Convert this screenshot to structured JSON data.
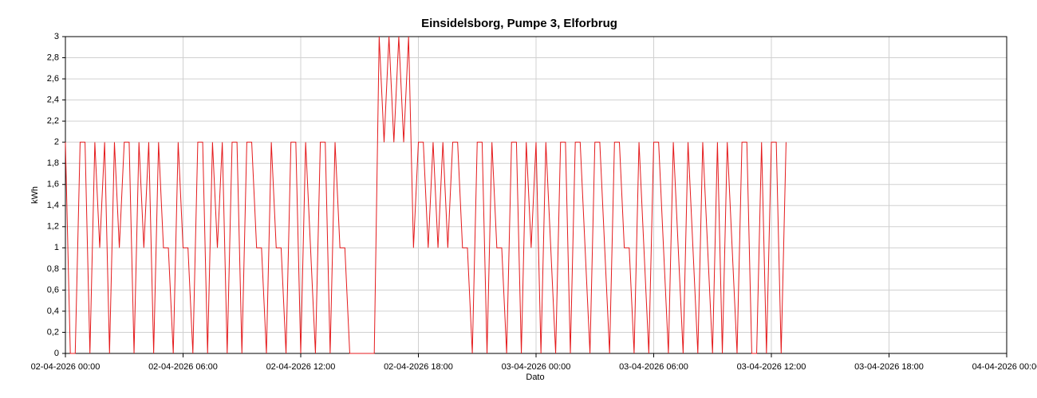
{
  "chart_data": {
    "type": "line",
    "title": "Einsidelsborg, Pumpe 3, Elforbrug",
    "x_label": "Dato",
    "y_label": "kWh",
    "grid": true,
    "xlim": [
      "02-04-2026 00:00",
      "04-04-2026 00:00"
    ],
    "xticks": [
      "02-04-2026 00:00",
      "02-04-2026 06:00",
      "02-04-2026 12:00",
      "02-04-2026 18:00",
      "03-04-2026 00:00",
      "03-04-2026 06:00",
      "03-04-2026 12:00",
      "03-04-2026 18:00",
      "04-04-2026 00:00"
    ],
    "ylim": [
      0,
      3
    ],
    "yticks": [
      0,
      {
        "value": 0.2,
        "label": "0,2"
      },
      {
        "value": 0.4,
        "label": "0,4"
      },
      {
        "value": 0.6,
        "label": "0,6"
      },
      {
        "value": 0.8,
        "label": "0,8"
      },
      1,
      {
        "value": 1.2,
        "label": "1,2"
      },
      {
        "value": 1.4,
        "label": "1,4"
      },
      {
        "value": 1.6,
        "label": "1,6"
      },
      {
        "value": 1.8,
        "label": "1,8"
      },
      2,
      {
        "value": 2.2,
        "label": "2,2"
      },
      {
        "value": 2.4,
        "label": "2,4"
      },
      {
        "value": 2.6,
        "label": "2,6"
      },
      {
        "value": 2.8,
        "label": "2,8"
      },
      3
    ],
    "x": [
      "02-04-2026 00:00",
      "02-04-2026 00:15",
      "02-04-2026 00:30",
      "02-04-2026 00:45",
      "02-04-2026 01:00",
      "02-04-2026 01:15",
      "02-04-2026 01:30",
      "02-04-2026 01:45",
      "02-04-2026 02:00",
      "02-04-2026 02:15",
      "02-04-2026 02:30",
      "02-04-2026 02:45",
      "02-04-2026 03:00",
      "02-04-2026 03:15",
      "02-04-2026 03:30",
      "02-04-2026 03:45",
      "02-04-2026 04:00",
      "02-04-2026 04:15",
      "02-04-2026 04:30",
      "02-04-2026 04:45",
      "02-04-2026 05:00",
      "02-04-2026 05:15",
      "02-04-2026 05:30",
      "02-04-2026 05:45",
      "02-04-2026 06:00",
      "02-04-2026 06:15",
      "02-04-2026 06:30",
      "02-04-2026 06:45",
      "02-04-2026 07:00",
      "02-04-2026 07:15",
      "02-04-2026 07:30",
      "02-04-2026 07:45",
      "02-04-2026 08:00",
      "02-04-2026 08:15",
      "02-04-2026 08:30",
      "02-04-2026 08:45",
      "02-04-2026 09:00",
      "02-04-2026 09:15",
      "02-04-2026 09:30",
      "02-04-2026 09:45",
      "02-04-2026 10:00",
      "02-04-2026 10:15",
      "02-04-2026 10:30",
      "02-04-2026 10:45",
      "02-04-2026 11:00",
      "02-04-2026 11:15",
      "02-04-2026 11:30",
      "02-04-2026 11:45",
      "02-04-2026 12:00",
      "02-04-2026 12:15",
      "02-04-2026 12:30",
      "02-04-2026 12:45",
      "02-04-2026 13:00",
      "02-04-2026 13:15",
      "02-04-2026 13:30",
      "02-04-2026 13:45",
      "02-04-2026 14:00",
      "02-04-2026 14:15",
      "02-04-2026 14:30",
      "02-04-2026 14:45",
      "02-04-2026 15:00",
      "02-04-2026 15:15",
      "02-04-2026 15:30",
      "02-04-2026 15:45",
      "02-04-2026 16:00",
      "02-04-2026 16:15",
      "02-04-2026 16:30",
      "02-04-2026 16:45",
      "02-04-2026 17:00",
      "02-04-2026 17:15",
      "02-04-2026 17:30",
      "02-04-2026 17:45",
      "02-04-2026 18:00",
      "02-04-2026 18:15",
      "02-04-2026 18:30",
      "02-04-2026 18:45",
      "02-04-2026 19:00",
      "02-04-2026 19:15",
      "02-04-2026 19:30",
      "02-04-2026 19:45",
      "02-04-2026 20:00",
      "02-04-2026 20:15",
      "02-04-2026 20:30",
      "02-04-2026 20:45",
      "02-04-2026 21:00",
      "02-04-2026 21:15",
      "02-04-2026 21:30",
      "02-04-2026 21:45",
      "02-04-2026 22:00",
      "02-04-2026 22:15",
      "02-04-2026 22:30",
      "02-04-2026 22:45",
      "02-04-2026 23:00",
      "02-04-2026 23:15",
      "02-04-2026 23:30",
      "02-04-2026 23:45",
      "03-04-2026 00:00",
      "03-04-2026 00:15",
      "03-04-2026 00:30",
      "03-04-2026 00:45",
      "03-04-2026 01:00",
      "03-04-2026 01:15",
      "03-04-2026 01:30",
      "03-04-2026 01:45",
      "03-04-2026 02:00",
      "03-04-2026 02:15",
      "03-04-2026 02:30",
      "03-04-2026 02:45",
      "03-04-2026 03:00",
      "03-04-2026 03:15",
      "03-04-2026 03:30",
      "03-04-2026 03:45",
      "03-04-2026 04:00",
      "03-04-2026 04:15",
      "03-04-2026 04:30",
      "03-04-2026 04:45",
      "03-04-2026 05:00",
      "03-04-2026 05:15",
      "03-04-2026 05:30",
      "03-04-2026 05:45",
      "03-04-2026 06:00",
      "03-04-2026 06:15",
      "03-04-2026 06:30",
      "03-04-2026 06:45",
      "03-04-2026 07:00",
      "03-04-2026 07:15",
      "03-04-2026 07:30",
      "03-04-2026 07:45",
      "03-04-2026 08:00",
      "03-04-2026 08:15",
      "03-04-2026 08:30",
      "03-04-2026 08:45",
      "03-04-2026 09:00",
      "03-04-2026 09:15",
      "03-04-2026 09:30",
      "03-04-2026 09:45",
      "03-04-2026 10:00",
      "03-04-2026 10:15",
      "03-04-2026 10:30",
      "03-04-2026 10:45",
      "03-04-2026 11:00",
      "03-04-2026 11:15",
      "03-04-2026 11:30",
      "03-04-2026 11:45",
      "03-04-2026 12:00",
      "03-04-2026 12:15",
      "03-04-2026 12:30",
      "03-04-2026 12:45"
    ],
    "series": [
      {
        "color": "#e41a1c",
        "values": [
          2,
          0,
          0,
          2,
          2,
          0,
          2,
          1,
          2,
          0,
          2,
          1,
          2,
          2,
          0,
          2,
          1,
          2,
          0,
          2,
          1,
          1,
          0,
          2,
          1,
          1,
          0,
          2,
          2,
          0,
          2,
          1,
          2,
          0,
          2,
          2,
          0,
          2,
          2,
          1,
          1,
          0,
          2,
          1,
          1,
          0,
          2,
          2,
          0,
          2,
          1,
          0,
          2,
          2,
          0,
          2,
          1,
          1,
          0,
          0,
          0,
          0,
          0,
          0,
          3,
          2,
          3,
          2,
          3,
          2,
          3,
          1,
          2,
          2,
          1,
          2,
          1,
          2,
          1,
          2,
          2,
          1,
          1,
          0,
          2,
          2,
          0,
          2,
          1,
          1,
          0,
          2,
          2,
          0,
          2,
          1,
          2,
          0,
          2,
          1,
          0,
          2,
          2,
          0,
          2,
          2,
          1,
          0,
          2,
          2,
          1,
          0,
          2,
          2,
          1,
          1,
          0,
          2,
          1,
          0,
          2,
          2,
          1,
          0,
          2,
          1,
          0,
          2,
          1,
          0,
          2,
          1,
          0,
          2,
          0,
          2,
          1,
          0,
          2,
          2,
          0,
          0,
          2,
          0,
          2,
          2,
          0,
          2
        ]
      }
    ]
  }
}
